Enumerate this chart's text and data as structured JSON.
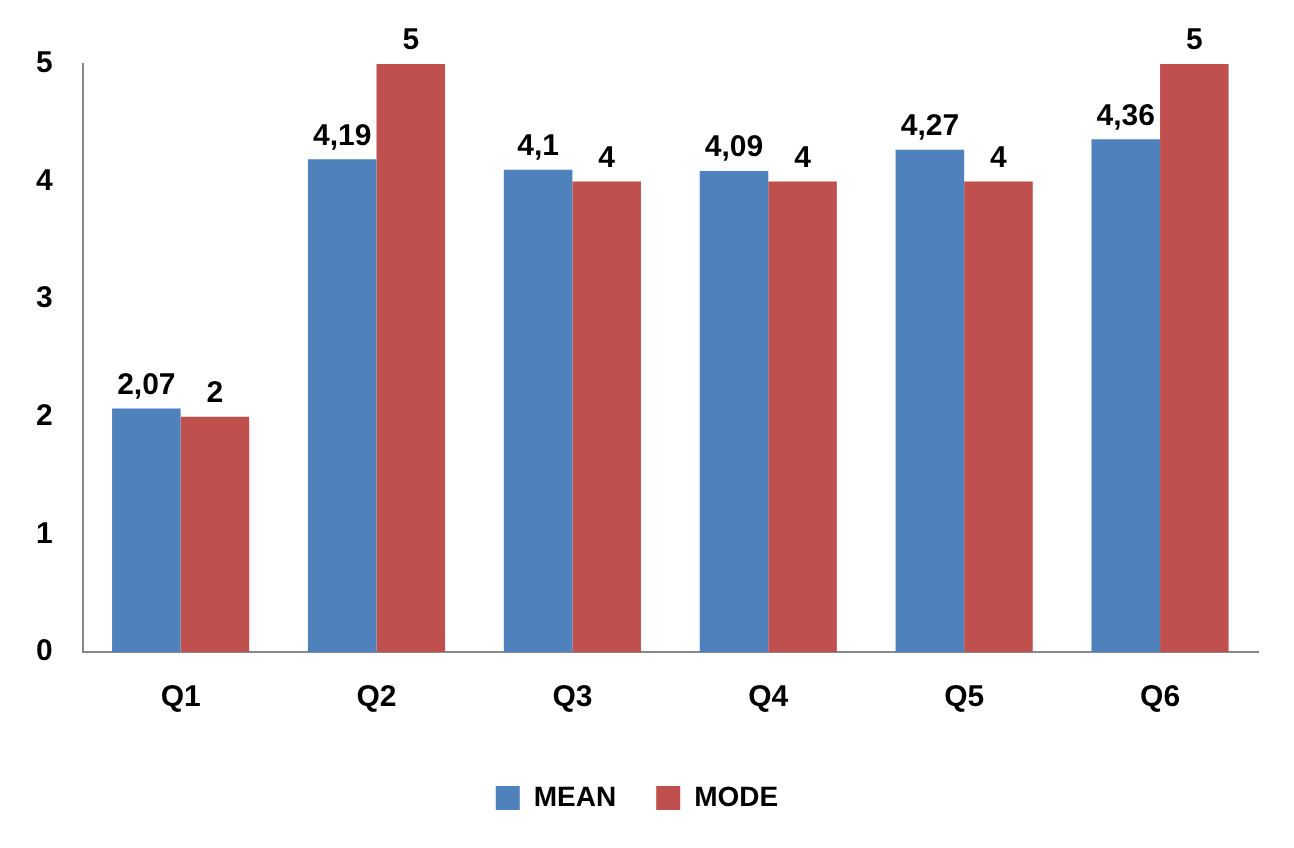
{
  "chart_data": {
    "type": "bar",
    "categories": [
      "Q1",
      "Q2",
      "Q3",
      "Q4",
      "Q5",
      "Q6"
    ],
    "series": [
      {
        "name": "MEAN",
        "color": "#4f81bd",
        "values": [
          2.07,
          4.19,
          4.1,
          4.09,
          4.27,
          4.36
        ],
        "value_labels": [
          "2,07",
          "4,19",
          "4,1",
          "4,09",
          "4,27",
          "4,36"
        ]
      },
      {
        "name": "MODE",
        "color": "#c0504d",
        "values": [
          2,
          5,
          4,
          4,
          4,
          5
        ],
        "value_labels": [
          "2",
          "5",
          "4",
          "4",
          "4",
          "5"
        ]
      }
    ],
    "ylim": [
      0,
      5
    ],
    "yticks": [
      0,
      1,
      2,
      3,
      4,
      5
    ],
    "grid": false,
    "legend": "bottom"
  }
}
